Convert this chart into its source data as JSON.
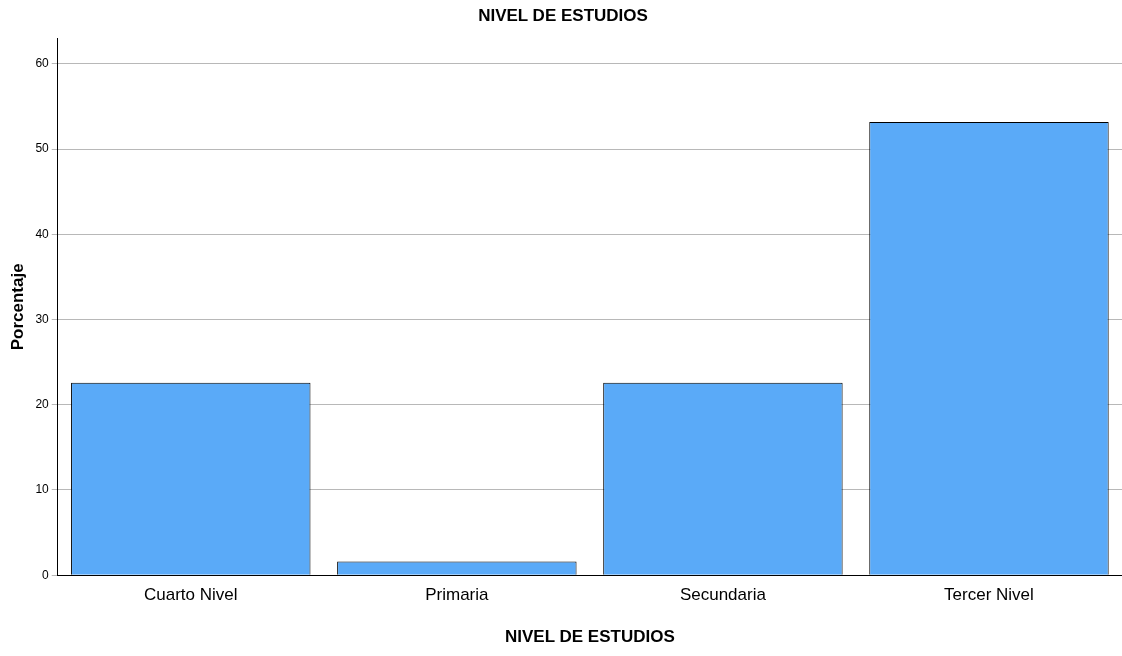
{
  "chart_data": {
    "type": "bar",
    "title": "NIVEL DE ESTUDIOS",
    "xlabel": "NIVEL DE ESTUDIOS",
    "ylabel": "Porcentaje",
    "categories": [
      "Cuarto Nivel",
      "Primaria",
      "Secundaria",
      "Tercer Nivel"
    ],
    "values": [
      22.6,
      1.6,
      22.6,
      53.2
    ],
    "color": "#5aaaf8",
    "ylim": [
      0,
      63
    ],
    "yticks": [
      0,
      10,
      20,
      30,
      40,
      50,
      60
    ],
    "grid": "y"
  }
}
